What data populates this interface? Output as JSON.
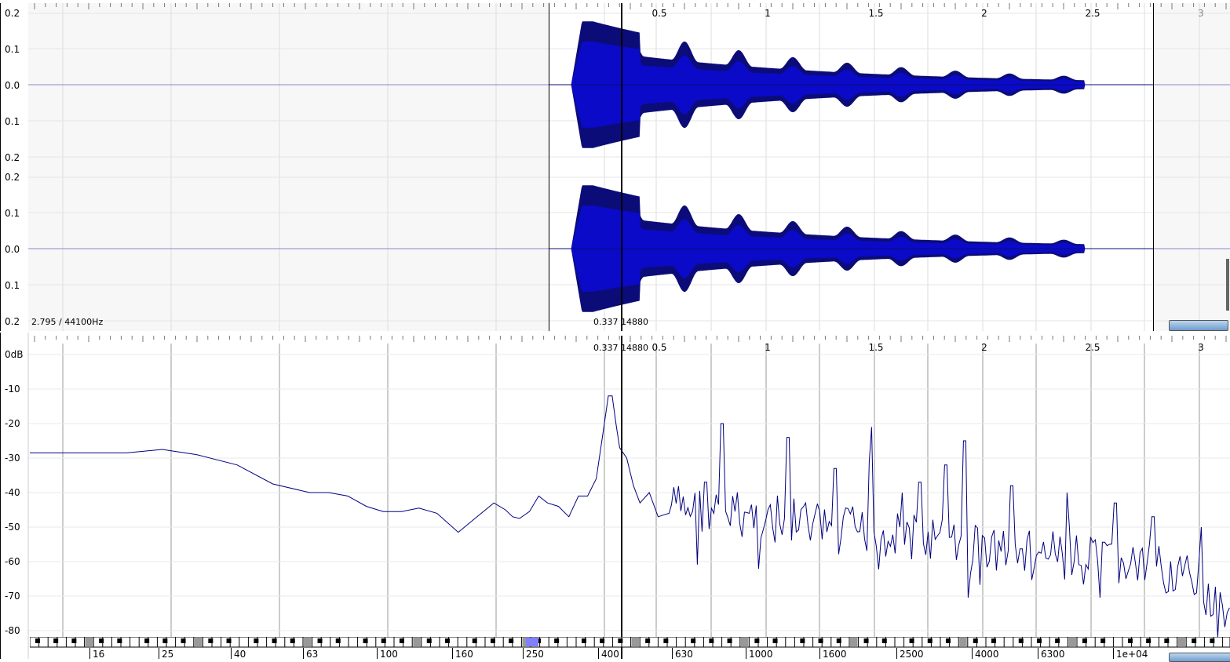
{
  "waveform": {
    "info_text": "2.795 / 44100Hz",
    "cursor_readout": "0.337  14880",
    "time_ticks": [
      "0.5",
      "1",
      "1.5",
      "2",
      "2.5",
      "3"
    ],
    "amp_labels": [
      "0.2",
      "0.1",
      "0.0",
      "0.1",
      "0.2"
    ],
    "channels": [
      "left",
      "right"
    ],
    "colors": {
      "outer": "#0c0c78",
      "inner": "#0a0ac8",
      "background_outside": "#f7f7f7",
      "zero_line": "#8888cc"
    }
  },
  "spectrum": {
    "cursor_readout": "0.337  14880",
    "time_ticks": [
      "0.5",
      "1",
      "1.5",
      "2",
      "2.5",
      "3"
    ],
    "db_labels": [
      "0dB",
      "-10",
      "-20",
      "-30",
      "-40",
      "-50",
      "-60",
      "-70",
      "-80"
    ],
    "freq_labels": [
      "16",
      "25",
      "40",
      "63",
      "100",
      "160",
      "250",
      "400",
      "630",
      "1000",
      "1600",
      "2500",
      "4000",
      "6300",
      "1e+04"
    ],
    "line_color": "#000080",
    "selected_key_color": "#8080ff"
  },
  "chart_data": {
    "type": "line",
    "x_scale": "log",
    "xlabel": "",
    "ylabel": "",
    "ylim": [
      -85,
      0
    ],
    "series": [
      {
        "x": [
          16,
          20,
          25,
          31,
          40,
          50,
          63,
          71,
          80,
          90,
          100,
          112,
          125,
          140,
          160,
          180,
          200,
          215,
          225,
          235,
          250,
          265,
          280,
          300,
          320,
          340,
          360,
          380,
          395,
          410,
          420,
          430,
          440,
          460,
          480,
          500,
          530,
          560,
          600
        ],
        "y": [
          -28.5,
          -28.5,
          -27.5,
          -29,
          -32,
          -37.5,
          -40,
          -40,
          -41,
          -44,
          -45.5,
          -45.5,
          -44.5,
          -46,
          -51.5,
          -47,
          -43,
          -45,
          -47,
          -47.5,
          -45.5,
          -41,
          -43,
          -44,
          -47,
          -41,
          -41,
          -36,
          -24,
          -12,
          -12,
          -20,
          -27,
          -30,
          -38,
          -43,
          -40,
          -47,
          -46
        ]
      }
    ]
  }
}
